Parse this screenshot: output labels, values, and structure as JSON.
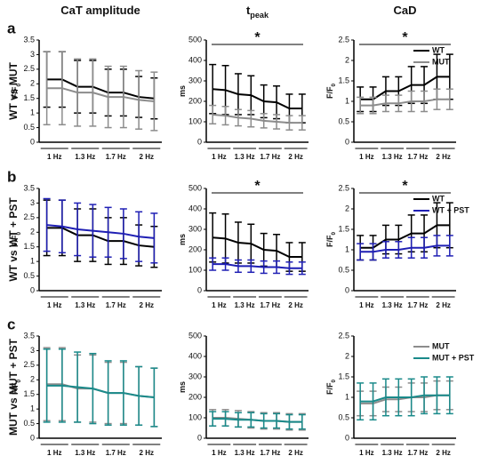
{
  "column_titles": [
    {
      "main": "CaT amplitude"
    },
    {
      "main": "t",
      "sub": "peak"
    },
    {
      "main": "CaD"
    }
  ],
  "panel_labels": [
    "a",
    "b",
    "c"
  ],
  "row_titles": [
    "WT vs MUT",
    "WT vs WT + PST",
    "MUT vs MUT + PST"
  ],
  "chart_data": [
    {
      "type": "line",
      "ylabel": {
        "main": "F/F",
        "sub": "0"
      },
      "categories": [
        "1 Hz",
        null,
        "1.3 Hz",
        null,
        "1.7 Hz",
        null,
        "2 Hz",
        null
      ],
      "ylim": [
        0,
        3.5
      ],
      "yticks": [
        0,
        0.5,
        1,
        1.5,
        2,
        2.5,
        3,
        3.5
      ],
      "series": [
        {
          "name": "WT",
          "color": "#000000",
          "values": [
            2.15,
            2.15,
            1.9,
            1.9,
            1.7,
            1.7,
            1.55,
            1.5
          ],
          "errors": [
            0.95,
            0.95,
            0.9,
            0.9,
            0.8,
            0.8,
            0.7,
            0.7
          ]
        },
        {
          "name": "MUT",
          "color": "#8c8c8c",
          "values": [
            1.85,
            1.85,
            1.7,
            1.7,
            1.55,
            1.55,
            1.45,
            1.4
          ],
          "errors": [
            1.25,
            1.25,
            1.15,
            1.15,
            1.05,
            1.05,
            1.0,
            1.0
          ]
        }
      ]
    },
    {
      "type": "line",
      "ylabel": {
        "main": "ms"
      },
      "categories": [
        "1 Hz",
        null,
        "1.3 Hz",
        null,
        "1.7 Hz",
        null,
        "2 Hz",
        null
      ],
      "ylim": [
        0,
        500
      ],
      "yticks": [
        0,
        100,
        200,
        300,
        400,
        500
      ],
      "annotation": "*",
      "series": [
        {
          "name": "WT",
          "color": "#000000",
          "values": [
            260,
            255,
            235,
            230,
            200,
            195,
            165,
            165
          ],
          "errors": [
            120,
            120,
            100,
            95,
            80,
            80,
            70,
            70
          ]
        },
        {
          "name": "MUT",
          "color": "#8c8c8c",
          "values": [
            135,
            130,
            120,
            115,
            105,
            100,
            95,
            95
          ],
          "errors": [
            45,
            45,
            40,
            40,
            35,
            35,
            35,
            35
          ]
        }
      ]
    },
    {
      "type": "line",
      "ylabel": {
        "main": "F/F",
        "sub": "0"
      },
      "categories": [
        "1 Hz",
        null,
        "1.3 Hz",
        null,
        "1.7 Hz",
        null,
        "2 Hz",
        null
      ],
      "ylim": [
        0,
        2.5
      ],
      "yticks": [
        0,
        0.5,
        1,
        1.5,
        2,
        2.5
      ],
      "annotation": "*",
      "legend": "upper right",
      "series": [
        {
          "name": "WT",
          "color": "#000000",
          "values": [
            1.05,
            1.05,
            1.25,
            1.25,
            1.4,
            1.4,
            1.6,
            1.6
          ],
          "errors": [
            0.3,
            0.3,
            0.35,
            0.35,
            0.45,
            0.45,
            0.55,
            0.55
          ]
        },
        {
          "name": "MUT",
          "color": "#8c8c8c",
          "values": [
            0.9,
            0.9,
            0.95,
            0.95,
            1.0,
            1.0,
            1.05,
            1.05
          ],
          "errors": [
            0.2,
            0.2,
            0.2,
            0.2,
            0.25,
            0.25,
            0.25,
            0.25
          ]
        }
      ]
    },
    {
      "type": "line",
      "ylabel": {
        "main": "F/F",
        "sub": "0"
      },
      "categories": [
        "1 Hz",
        null,
        "1.3 Hz",
        null,
        "1.7 Hz",
        null,
        "2 Hz",
        null
      ],
      "ylim": [
        0,
        3.5
      ],
      "yticks": [
        0,
        0.5,
        1,
        1.5,
        2,
        2.5,
        3,
        3.5
      ],
      "series": [
        {
          "name": "WT",
          "color": "#000000",
          "values": [
            2.15,
            2.15,
            1.9,
            1.9,
            1.7,
            1.7,
            1.55,
            1.5
          ],
          "errors": [
            0.95,
            0.95,
            0.9,
            0.9,
            0.8,
            0.8,
            0.7,
            0.7
          ]
        },
        {
          "name": "WT + PST",
          "color": "#1f1fb4",
          "values": [
            2.25,
            2.2,
            2.1,
            2.05,
            2.0,
            1.95,
            1.85,
            1.8
          ],
          "errors": [
            0.9,
            0.9,
            0.9,
            0.9,
            0.85,
            0.85,
            0.85,
            0.85
          ]
        }
      ]
    },
    {
      "type": "line",
      "ylabel": {
        "main": "ms"
      },
      "categories": [
        "1 Hz",
        null,
        "1.3 Hz",
        null,
        "1.7 Hz",
        null,
        "2 Hz",
        null
      ],
      "ylim": [
        0,
        500
      ],
      "yticks": [
        0,
        100,
        200,
        300,
        400,
        500
      ],
      "annotation": "*",
      "series": [
        {
          "name": "WT",
          "color": "#000000",
          "values": [
            260,
            255,
            235,
            230,
            200,
            195,
            165,
            165
          ],
          "errors": [
            120,
            120,
            100,
            95,
            80,
            80,
            70,
            70
          ]
        },
        {
          "name": "WT + PST",
          "color": "#1f1fb4",
          "values": [
            130,
            130,
            120,
            120,
            115,
            115,
            110,
            110
          ],
          "errors": [
            30,
            30,
            30,
            30,
            30,
            30,
            30,
            30
          ]
        }
      ]
    },
    {
      "type": "line",
      "ylabel": {
        "main": "F/F",
        "sub": "0"
      },
      "categories": [
        "1 Hz",
        null,
        "1.3 Hz",
        null,
        "1.7 Hz",
        null,
        "2 Hz",
        null
      ],
      "ylim": [
        0,
        2.5
      ],
      "yticks": [
        0,
        0.5,
        1,
        1.5,
        2,
        2.5
      ],
      "annotation": "*",
      "legend": "upper right",
      "series": [
        {
          "name": "WT",
          "color": "#000000",
          "values": [
            1.05,
            1.05,
            1.25,
            1.25,
            1.4,
            1.4,
            1.6,
            1.6
          ],
          "errors": [
            0.3,
            0.3,
            0.35,
            0.35,
            0.45,
            0.45,
            0.55,
            0.55
          ]
        },
        {
          "name": "WT + PST",
          "color": "#1f1fb4",
          "values": [
            0.95,
            0.95,
            1.0,
            1.0,
            1.05,
            1.05,
            1.1,
            1.1
          ],
          "errors": [
            0.2,
            0.2,
            0.2,
            0.2,
            0.25,
            0.25,
            0.25,
            0.25
          ]
        }
      ]
    },
    {
      "type": "line",
      "ylabel": {
        "main": "F/F",
        "sub": "0"
      },
      "categories": [
        "1 Hz",
        null,
        "1.3 Hz",
        null,
        "1.7 Hz",
        null,
        "2 Hz",
        null
      ],
      "ylim": [
        0,
        3.5
      ],
      "yticks": [
        0,
        0.5,
        1,
        1.5,
        2,
        2.5,
        3,
        3.5
      ],
      "series": [
        {
          "name": "MUT",
          "color": "#8c8c8c",
          "values": [
            1.85,
            1.85,
            1.7,
            1.7,
            1.55,
            1.55,
            1.45,
            1.4
          ],
          "errors": [
            1.25,
            1.25,
            1.15,
            1.15,
            1.05,
            1.05,
            1.0,
            1.0
          ]
        },
        {
          "name": "MUT + PST",
          "color": "#1a8a8a",
          "values": [
            1.8,
            1.8,
            1.75,
            1.7,
            1.55,
            1.55,
            1.45,
            1.4
          ],
          "errors": [
            1.25,
            1.25,
            1.2,
            1.2,
            1.1,
            1.1,
            1.0,
            1.0
          ]
        }
      ]
    },
    {
      "type": "line",
      "ylabel": {
        "main": "ms"
      },
      "categories": [
        "1 Hz",
        null,
        "1.3 Hz",
        null,
        "1.7 Hz",
        null,
        "2 Hz",
        null
      ],
      "ylim": [
        0,
        500
      ],
      "yticks": [
        0,
        100,
        200,
        300,
        400,
        500
      ],
      "series": [
        {
          "name": "MUT",
          "color": "#8c8c8c",
          "values": [
            100,
            100,
            95,
            90,
            85,
            85,
            80,
            80
          ],
          "errors": [
            40,
            40,
            40,
            40,
            40,
            40,
            40,
            40
          ]
        },
        {
          "name": "MUT + PST",
          "color": "#1a8a8a",
          "values": [
            95,
            95,
            90,
            90,
            85,
            85,
            80,
            80
          ],
          "errors": [
            35,
            35,
            35,
            35,
            35,
            35,
            35,
            35
          ]
        }
      ]
    },
    {
      "type": "line",
      "ylabel": {
        "main": "F/F",
        "sub": "0"
      },
      "categories": [
        "1 Hz",
        null,
        "1.3 Hz",
        null,
        "1.7 Hz",
        null,
        "2 Hz",
        null
      ],
      "ylim": [
        0,
        2.5
      ],
      "yticks": [
        0,
        0.5,
        1,
        1.5,
        2,
        2.5
      ],
      "legend": "upper right",
      "series": [
        {
          "name": "MUT",
          "color": "#8c8c8c",
          "values": [
            0.85,
            0.85,
            0.95,
            0.95,
            1.0,
            1.0,
            1.05,
            1.05
          ],
          "errors": [
            0.3,
            0.3,
            0.3,
            0.3,
            0.35,
            0.35,
            0.35,
            0.35
          ]
        },
        {
          "name": "MUT + PST",
          "color": "#1a8a8a",
          "values": [
            0.9,
            0.9,
            1.0,
            1.0,
            1.0,
            1.05,
            1.05,
            1.05
          ],
          "errors": [
            0.45,
            0.45,
            0.45,
            0.45,
            0.45,
            0.45,
            0.45,
            0.45
          ]
        }
      ]
    }
  ]
}
